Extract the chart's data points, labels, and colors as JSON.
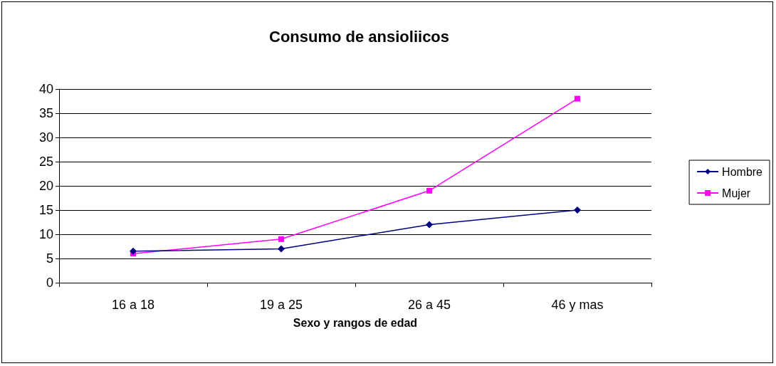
{
  "chart_data": {
    "type": "line",
    "title": "Consumo de ansioliicos",
    "xlabel": "Sexo y rangos de edad",
    "categories": [
      "16 a 18",
      "19 a 25",
      "26 a 45",
      "46 y mas"
    ],
    "series": [
      {
        "name": "Hombre",
        "color": "#000080",
        "marker": "diamond",
        "values": [
          6.5,
          7,
          12,
          15
        ]
      },
      {
        "name": "Mujer",
        "color": "#ff00ff",
        "marker": "square",
        "values": [
          6,
          9,
          19,
          38
        ]
      }
    ],
    "ylim": [
      0,
      40
    ],
    "yticks": [
      0,
      5,
      10,
      15,
      20,
      25,
      30,
      35,
      40
    ],
    "grid": "y",
    "legend": "right"
  }
}
